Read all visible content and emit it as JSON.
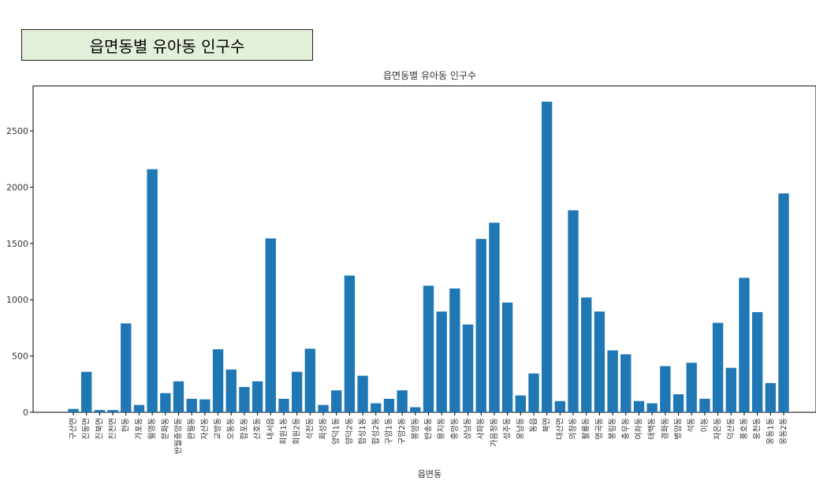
{
  "header": {
    "box_title": "읍면동별 유아동 인구수"
  },
  "chart_data": {
    "type": "bar",
    "title": "읍면동별 유아동 인구수",
    "xlabel": "읍면동",
    "ylabel": "",
    "ylim": [
      0,
      2900
    ],
    "yticks": [
      0,
      500,
      1000,
      1500,
      2000,
      2500
    ],
    "grid": false,
    "bar_color": "#1f77b4",
    "categories": [
      "구산면",
      "진동면",
      "진북면",
      "진전면",
      "현동",
      "가포동",
      "월영동",
      "문화동",
      "반월중앙동",
      "완월동",
      "자산동",
      "교방동",
      "오동동",
      "합포동",
      "산호동",
      "내서읍",
      "회원1동",
      "회원2동",
      "석전동",
      "회성동",
      "양덕1동",
      "양덕2동",
      "합성1동",
      "합성2동",
      "구암1동",
      "구암2동",
      "봉암동",
      "반송동",
      "용지동",
      "중앙동",
      "상남동",
      "사파동",
      "가음정동",
      "성주동",
      "웅남동",
      "동읍",
      "북면",
      "대산면",
      "의창동",
      "팔룡동",
      "명곡동",
      "봉림동",
      "충무동",
      "여좌동",
      "태백동",
      "경화동",
      "병암동",
      "석동",
      "이동",
      "자은동",
      "덕산동",
      "풍호동",
      "웅천동",
      "웅동1동",
      "웅동2동"
    ],
    "values": [
      30,
      360,
      20,
      20,
      790,
      65,
      2160,
      170,
      275,
      120,
      115,
      560,
      380,
      225,
      275,
      1545,
      120,
      360,
      565,
      65,
      195,
      1215,
      325,
      80,
      120,
      195,
      45,
      1125,
      895,
      1100,
      780,
      1540,
      1685,
      975,
      150,
      345,
      2760,
      100,
      1795,
      1020,
      895,
      550,
      515,
      100,
      80,
      410,
      160,
      440,
      120,
      795,
      395,
      1195,
      890,
      260,
      1945
    ]
  }
}
